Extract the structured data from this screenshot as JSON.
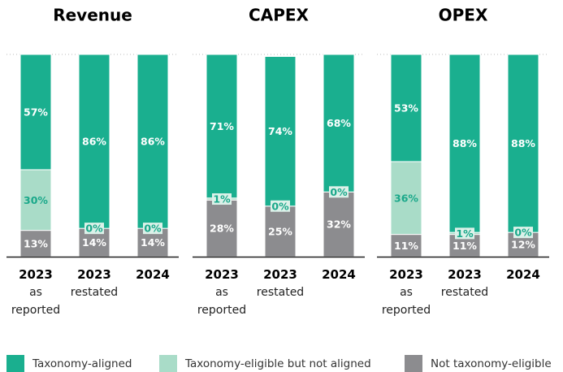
{
  "chart_data": [
    {
      "type": "bar",
      "stacked": true,
      "title": "Revenue",
      "categories": [
        "2023",
        "2023",
        "2024"
      ],
      "category_notes": [
        "as reported",
        "restated",
        null
      ],
      "ylim": [
        0,
        100
      ],
      "series": [
        {
          "name": "Taxonomy-aligned",
          "color": "#1aaf8f",
          "values": [
            57,
            86,
            86
          ],
          "value_labels": [
            "57%",
            "86%",
            "86%"
          ]
        },
        {
          "name": "Taxonomy-eligible but not aligned",
          "color": "#a9dcc8",
          "values": [
            30,
            0,
            0
          ],
          "value_labels": [
            "30%",
            "0%",
            "0%"
          ]
        },
        {
          "name": "Not taxonomy-eligible",
          "color": "#8c8c8f",
          "values": [
            13,
            14,
            14
          ],
          "value_labels": [
            "13%",
            "14%",
            "14%"
          ]
        }
      ]
    },
    {
      "type": "bar",
      "stacked": true,
      "title": "CAPEX",
      "categories": [
        "2023",
        "2023",
        "2024"
      ],
      "category_notes": [
        "as reported",
        "restated",
        null
      ],
      "ylim": [
        0,
        100
      ],
      "series": [
        {
          "name": "Taxonomy-aligned",
          "color": "#1aaf8f",
          "values": [
            71,
            74,
            68
          ],
          "value_labels": [
            "71%",
            "74%",
            "68%"
          ]
        },
        {
          "name": "Taxonomy-eligible but not aligned",
          "color": "#a9dcc8",
          "values": [
            1,
            0,
            0
          ],
          "value_labels": [
            "1%",
            "0%",
            "0%"
          ]
        },
        {
          "name": "Not taxonomy-eligible",
          "color": "#8c8c8f",
          "values": [
            28,
            25,
            32
          ],
          "value_labels": [
            "28%",
            "25%",
            "32%"
          ]
        }
      ]
    },
    {
      "type": "bar",
      "stacked": true,
      "title": "OPEX",
      "categories": [
        "2023",
        "2023",
        "2024"
      ],
      "category_notes": [
        "as reported",
        "restated",
        null
      ],
      "ylim": [
        0,
        100
      ],
      "series": [
        {
          "name": "Taxonomy-aligned",
          "color": "#1aaf8f",
          "values": [
            53,
            88,
            88
          ],
          "value_labels": [
            "53%",
            "88%",
            "88%"
          ]
        },
        {
          "name": "Taxonomy-eligible but not aligned",
          "color": "#a9dcc8",
          "values": [
            36,
            1,
            0
          ],
          "value_labels": [
            "36%",
            "1%",
            "0%"
          ]
        },
        {
          "name": "Not taxonomy-eligible",
          "color": "#8c8c8f",
          "values": [
            11,
            11,
            12
          ],
          "value_labels": [
            "11%",
            "11%",
            "12%"
          ]
        }
      ]
    }
  ]
}
